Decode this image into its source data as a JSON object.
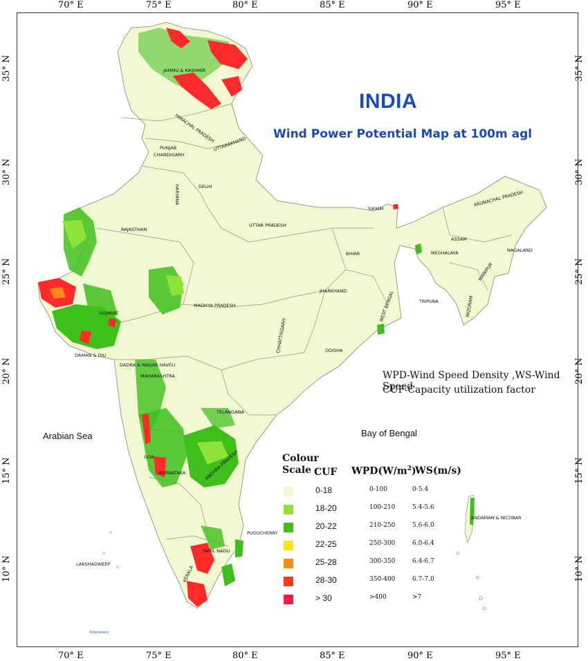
{
  "map": {
    "title": "INDIA",
    "subtitle": "Wind Power Potential Map at 100m agl",
    "notes": [
      "WPD-Wind Speed Density ,WS-Wind Speed",
      "CUF-Capacity utilization factor"
    ],
    "seas": [
      "Arabian Sea",
      "Bay of Bengal"
    ],
    "longitude_ticks": [
      "70° E",
      "75° E",
      "80° E",
      "85° E",
      "90° E",
      "95° E"
    ],
    "latitude_ticks": [
      "35° N",
      "30° N",
      "25° N",
      "20° N",
      "15° N",
      "10° N"
    ],
    "regions": {
      "jk": "JAMMU & KASHMIR",
      "hp": "HIMACHAL PRADESH",
      "punjab": "PUNJAB",
      "chandigarh": "CHANDIGARH",
      "uttarakhand": "UTTARAKHAND",
      "haryana": "HARYANA",
      "delhi": "DELHI",
      "rajasthan": "RAJASTHAN",
      "up": "UTTAR PRADESH",
      "sikkim": "SIKKIM",
      "arunachal": "ARUNACHAL PRADESH",
      "assam": "ASSAM",
      "nagaland": "NAGALAND",
      "meghalaya": "MEGHALAYA",
      "manipur": "MANIPUR",
      "bihar": "BIHAR",
      "tripura": "TRIPURA",
      "mizoram": "MIZORAM",
      "jharkhand": "JHARKHAND",
      "wb": "WEST BENGAL",
      "mp": "MADHYA PRADESH",
      "gujarat": "GUJARAT",
      "chhattisgarh": "CHHATTISGARH",
      "odisha": "ODISHA",
      "daman": "DAMAN & DIU",
      "dadra": "DADRA & NAGAR HAVELI",
      "maharashtra": "MAHARASHTRA",
      "telangana": "TELANGANA",
      "goa": "GOA",
      "karnataka": "KARNATAKA",
      "ap": "ANDHRA PRADESH",
      "andaman": "ANDAMAN & NICOBAR",
      "puducherry": "PUDUCHERRY",
      "tn": "TAMIL NADU",
      "lakshadweep": "LAKSHADWEEP",
      "kerala": "KERALA"
    },
    "scale_label": "Kilometers"
  },
  "legend": {
    "title_line1": "Colour",
    "title_line2": "Scale",
    "col_cuf": "CUF",
    "col_wpd": "WPD(W/m",
    "col_wpd_sup": "2",
    "col_wpd_end": ")",
    "col_ws": "WS(m/s)",
    "rows": [
      {
        "cuf": "0-18",
        "wpd": "0-100",
        "ws": "0-5.4",
        "color": "#f1f8d2"
      },
      {
        "cuf": "18-20",
        "wpd": "100-210",
        "ws": "5.4-5.6",
        "color": "#8fe23a"
      },
      {
        "cuf": "20-22",
        "wpd": "210-250",
        "ws": "5.6-6.0",
        "color": "#3fbf1c"
      },
      {
        "cuf": "22-25",
        "wpd": "250-300",
        "ws": "6.0-6.4",
        "color": "#ffe51a"
      },
      {
        "cuf": "25-28",
        "wpd": "300-350",
        "ws": "6.4-6.7",
        "color": "#ff8c1a"
      },
      {
        "cuf": "28-30",
        "wpd": "350-400",
        "ws": "6.7-7.0",
        "color": "#ff3a1a"
      },
      {
        "cuf": "> 30",
        "wpd": ">400",
        "ws": ">7",
        "color": "#ff1a4a"
      }
    ]
  }
}
